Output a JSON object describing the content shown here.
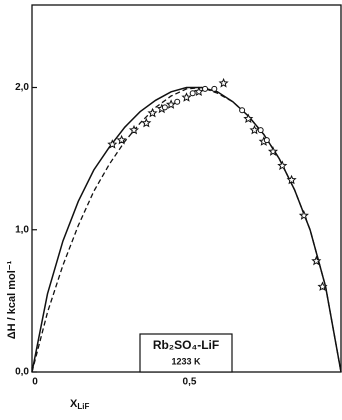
{
  "chart_data": {
    "type": "line",
    "xlabel": {
      "main": "X",
      "sub": "LiF"
    },
    "ylabel": "ΔH / kcal mol⁻¹",
    "annotation": [
      "Rb₂SO₄-LiF",
      "1233 K"
    ],
    "xlim": [
      0,
      1
    ],
    "ylim": [
      0,
      2.58
    ],
    "xticks": [
      0,
      {
        "value": 0.5,
        "label": "0,5"
      }
    ],
    "yticks": [
      {
        "value": 0,
        "label": "0,0"
      },
      {
        "value": 1,
        "label": "1,0"
      },
      {
        "value": 2,
        "label": "2,0"
      }
    ],
    "series": [
      {
        "style": "solid",
        "color": "#111111",
        "x": [
          0,
          0.05,
          0.1,
          0.15,
          0.2,
          0.25,
          0.3,
          0.35,
          0.4,
          0.45,
          0.5,
          0.55,
          0.6,
          0.65,
          0.7,
          0.75,
          0.8,
          0.85,
          0.9,
          0.95,
          1.0
        ],
        "values": [
          0,
          0.55,
          0.92,
          1.2,
          1.42,
          1.58,
          1.72,
          1.83,
          1.91,
          1.97,
          2.0,
          2.0,
          1.97,
          1.9,
          1.8,
          1.67,
          1.5,
          1.28,
          1.0,
          0.6,
          0
        ]
      },
      {
        "style": "dashed",
        "color": "#111111",
        "x": [
          0,
          0.05,
          0.1,
          0.15,
          0.2,
          0.25,
          0.3,
          0.35,
          0.4,
          0.45,
          0.5,
          0.55,
          0.6,
          0.65,
          0.7,
          0.75,
          0.8,
          0.85,
          0.9,
          0.95,
          1.0
        ],
        "values": [
          0,
          0.42,
          0.75,
          1.03,
          1.27,
          1.46,
          1.62,
          1.75,
          1.86,
          1.94,
          1.99,
          2.0,
          1.96,
          1.9,
          1.8,
          1.67,
          1.5,
          1.28,
          1.0,
          0.6,
          0
        ]
      },
      {
        "style": "star",
        "color": "#111111",
        "x": [
          0.26,
          0.29,
          0.33,
          0.37,
          0.39,
          0.42,
          0.45,
          0.5,
          0.54,
          0.62,
          0.7,
          0.72,
          0.75,
          0.78,
          0.81,
          0.84,
          0.88,
          0.92,
          0.94
        ],
        "values": [
          1.6,
          1.63,
          1.7,
          1.75,
          1.82,
          1.85,
          1.88,
          1.93,
          1.97,
          2.03,
          1.78,
          1.7,
          1.62,
          1.55,
          1.45,
          1.35,
          1.1,
          0.78,
          0.6
        ]
      },
      {
        "style": "circle",
        "color": "#111111",
        "x": [
          0.43,
          0.47,
          0.52,
          0.56,
          0.59,
          0.68,
          0.74,
          0.76
        ],
        "values": [
          1.86,
          1.9,
          1.96,
          1.99,
          1.99,
          1.84,
          1.7,
          1.63
        ]
      }
    ]
  }
}
